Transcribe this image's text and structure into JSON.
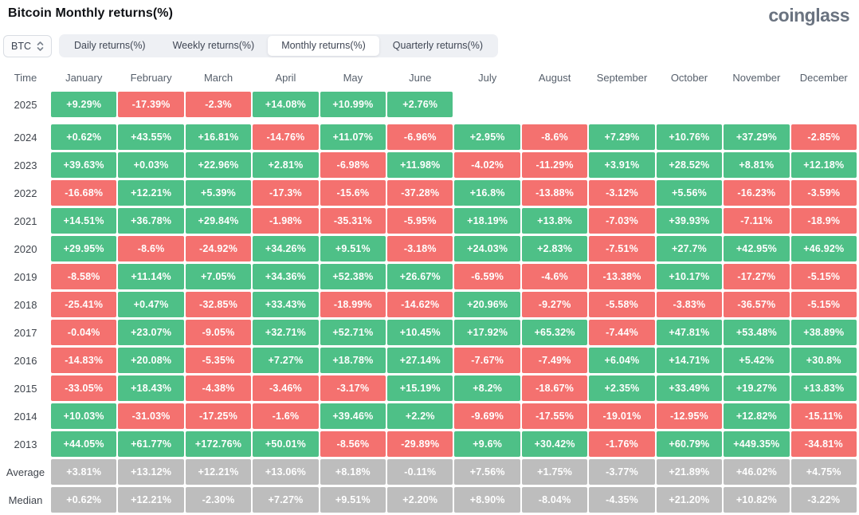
{
  "header": {
    "title": "Bitcoin Monthly returns(%)",
    "brand": "coinglass"
  },
  "controls": {
    "coin_selector": {
      "label": "BTC",
      "icon": "up-down-chevrons"
    },
    "tabs": [
      {
        "key": "daily",
        "label": "Daily returns(%)",
        "active": false
      },
      {
        "key": "weekly",
        "label": "Weekly returns(%)",
        "active": false
      },
      {
        "key": "monthly",
        "label": "Monthly returns(%)",
        "active": true
      },
      {
        "key": "quarterly",
        "label": "Quarterly returns(%)",
        "active": false
      }
    ]
  },
  "colors": {
    "positive": "#4EC087",
    "negative": "#F4716F",
    "summary": "#BDBDBD",
    "brand_text": "#6A7380"
  },
  "chart_data": {
    "type": "table",
    "columns": [
      "Time",
      "January",
      "February",
      "March",
      "April",
      "May",
      "June",
      "July",
      "August",
      "September",
      "October",
      "November",
      "December"
    ],
    "rows": [
      {
        "label": "2025",
        "gap_after": true,
        "summary": false,
        "values": [
          "+9.29%",
          "-17.39%",
          "-2.3%",
          "+14.08%",
          "+10.99%",
          "+2.76%",
          null,
          null,
          null,
          null,
          null,
          null
        ]
      },
      {
        "label": "2024",
        "gap_after": false,
        "summary": false,
        "values": [
          "+0.62%",
          "+43.55%",
          "+16.81%",
          "-14.76%",
          "+11.07%",
          "-6.96%",
          "+2.95%",
          "-8.6%",
          "+7.29%",
          "+10.76%",
          "+37.29%",
          "-2.85%"
        ]
      },
      {
        "label": "2023",
        "gap_after": false,
        "summary": false,
        "values": [
          "+39.63%",
          "+0.03%",
          "+22.96%",
          "+2.81%",
          "-6.98%",
          "+11.98%",
          "-4.02%",
          "-11.29%",
          "+3.91%",
          "+28.52%",
          "+8.81%",
          "+12.18%"
        ]
      },
      {
        "label": "2022",
        "gap_after": false,
        "summary": false,
        "values": [
          "-16.68%",
          "+12.21%",
          "+5.39%",
          "-17.3%",
          "-15.6%",
          "-37.28%",
          "+16.8%",
          "-13.88%",
          "-3.12%",
          "+5.56%",
          "-16.23%",
          "-3.59%"
        ]
      },
      {
        "label": "2021",
        "gap_after": false,
        "summary": false,
        "values": [
          "+14.51%",
          "+36.78%",
          "+29.84%",
          "-1.98%",
          "-35.31%",
          "-5.95%",
          "+18.19%",
          "+13.8%",
          "-7.03%",
          "+39.93%",
          "-7.11%",
          "-18.9%"
        ]
      },
      {
        "label": "2020",
        "gap_after": false,
        "summary": false,
        "values": [
          "+29.95%",
          "-8.6%",
          "-24.92%",
          "+34.26%",
          "+9.51%",
          "-3.18%",
          "+24.03%",
          "+2.83%",
          "-7.51%",
          "+27.7%",
          "+42.95%",
          "+46.92%"
        ]
      },
      {
        "label": "2019",
        "gap_after": false,
        "summary": false,
        "values": [
          "-8.58%",
          "+11.14%",
          "+7.05%",
          "+34.36%",
          "+52.38%",
          "+26.67%",
          "-6.59%",
          "-4.6%",
          "-13.38%",
          "+10.17%",
          "-17.27%",
          "-5.15%"
        ]
      },
      {
        "label": "2018",
        "gap_after": false,
        "summary": false,
        "values": [
          "-25.41%",
          "+0.47%",
          "-32.85%",
          "+33.43%",
          "-18.99%",
          "-14.62%",
          "+20.96%",
          "-9.27%",
          "-5.58%",
          "-3.83%",
          "-36.57%",
          "-5.15%"
        ]
      },
      {
        "label": "2017",
        "gap_after": false,
        "summary": false,
        "values": [
          "-0.04%",
          "+23.07%",
          "-9.05%",
          "+32.71%",
          "+52.71%",
          "+10.45%",
          "+17.92%",
          "+65.32%",
          "-7.44%",
          "+47.81%",
          "+53.48%",
          "+38.89%"
        ]
      },
      {
        "label": "2016",
        "gap_after": false,
        "summary": false,
        "values": [
          "-14.83%",
          "+20.08%",
          "-5.35%",
          "+7.27%",
          "+18.78%",
          "+27.14%",
          "-7.67%",
          "-7.49%",
          "+6.04%",
          "+14.71%",
          "+5.42%",
          "+30.8%"
        ]
      },
      {
        "label": "2015",
        "gap_after": false,
        "summary": false,
        "values": [
          "-33.05%",
          "+18.43%",
          "-4.38%",
          "-3.46%",
          "-3.17%",
          "+15.19%",
          "+8.2%",
          "-18.67%",
          "+2.35%",
          "+33.49%",
          "+19.27%",
          "+13.83%"
        ]
      },
      {
        "label": "2014",
        "gap_after": false,
        "summary": false,
        "values": [
          "+10.03%",
          "-31.03%",
          "-17.25%",
          "-1.6%",
          "+39.46%",
          "+2.2%",
          "-9.69%",
          "-17.55%",
          "-19.01%",
          "-12.95%",
          "+12.82%",
          "-15.11%"
        ]
      },
      {
        "label": "2013",
        "gap_after": false,
        "summary": false,
        "values": [
          "+44.05%",
          "+61.77%",
          "+172.76%",
          "+50.01%",
          "-8.56%",
          "-29.89%",
          "+9.6%",
          "+30.42%",
          "-1.76%",
          "+60.79%",
          "+449.35%",
          "-34.81%"
        ]
      },
      {
        "label": "Average",
        "gap_after": false,
        "summary": true,
        "values": [
          "+3.81%",
          "+13.12%",
          "+12.21%",
          "+13.06%",
          "+8.18%",
          "-0.11%",
          "+7.56%",
          "+1.75%",
          "-3.77%",
          "+21.89%",
          "+46.02%",
          "+4.75%"
        ]
      },
      {
        "label": "Median",
        "gap_after": false,
        "summary": true,
        "values": [
          "+0.62%",
          "+12.21%",
          "-2.30%",
          "+7.27%",
          "+9.51%",
          "+2.20%",
          "+8.90%",
          "-8.04%",
          "-4.35%",
          "+21.20%",
          "+10.82%",
          "-3.22%"
        ]
      }
    ]
  }
}
